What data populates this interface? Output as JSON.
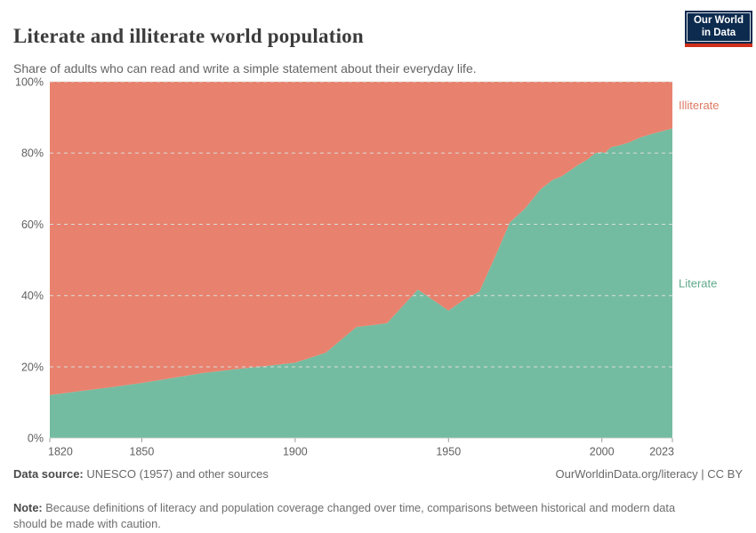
{
  "page": {
    "title": "Literate and illiterate world population",
    "subtitle": "Share of adults who can read and write a simple statement about their everyday life."
  },
  "logo": {
    "line1": "Our World",
    "line2": "in Data",
    "bg_color": "#0d2b4f",
    "stripe_color": "#cf2e1a"
  },
  "chart_data": {
    "type": "area",
    "stacked": true,
    "title": "Literate and illiterate world population",
    "xlabel": "",
    "ylabel": "",
    "xlim": [
      1820,
      2023
    ],
    "ylim": [
      0,
      100
    ],
    "xticks": [
      1820,
      1850,
      1900,
      1950,
      2000,
      2023
    ],
    "yticks": [
      0,
      20,
      40,
      60,
      80,
      100
    ],
    "ytick_suffix": "%",
    "grid": "horizontal-dashed",
    "gridline_color": "#dcdcdc",
    "legend_position": "right-edge-area-labels",
    "x": [
      1820,
      1830,
      1840,
      1850,
      1860,
      1870,
      1880,
      1890,
      1900,
      1910,
      1920,
      1925,
      1930,
      1940,
      1950,
      1956,
      1960,
      1965,
      1970,
      1975,
      1980,
      1984,
      1987,
      1990,
      1992,
      1995,
      1998,
      2000,
      2001,
      2003,
      2006,
      2009,
      2012,
      2016,
      2020,
      2023
    ],
    "series": [
      {
        "name": "Literate",
        "color": "#74bca1",
        "label_color": "#5fa98c",
        "values": [
          12.1,
          13.2,
          14.3,
          15.5,
          16.9,
          18.3,
          19.3,
          20.2,
          21.2,
          24,
          31.2,
          31.7,
          32.3,
          41.7,
          35.8,
          39.4,
          41,
          50.5,
          60.5,
          64.5,
          69.8,
          72.5,
          73.5,
          75.3,
          76.5,
          78,
          80,
          80.3,
          80,
          81.6,
          82.2,
          83,
          84.2,
          85.3,
          86.2,
          86.9
        ]
      },
      {
        "name": "Illiterate",
        "color": "#e8826e",
        "label_color": "#dd7a63",
        "values": [
          87.9,
          86.8,
          85.7,
          84.5,
          83.1,
          81.7,
          80.7,
          79.8,
          78.8,
          76,
          68.8,
          68.3,
          67.7,
          58.3,
          64.2,
          60.6,
          59,
          49.5,
          39.5,
          35.5,
          30.2,
          27.5,
          26.5,
          24.7,
          23.5,
          22,
          20,
          19.7,
          20,
          18.4,
          17.8,
          17,
          15.8,
          14.7,
          13.8,
          13.1
        ]
      }
    ]
  },
  "footer": {
    "data_source_label": "Data source:",
    "data_source_text": "UNESCO (1957) and other sources",
    "attribution": "OurWorldinData.org/literacy | CC BY",
    "note_label": "Note:",
    "note_text": "Because definitions of literacy and population coverage changed over time, comparisons between historical and modern data should be made with caution."
  }
}
